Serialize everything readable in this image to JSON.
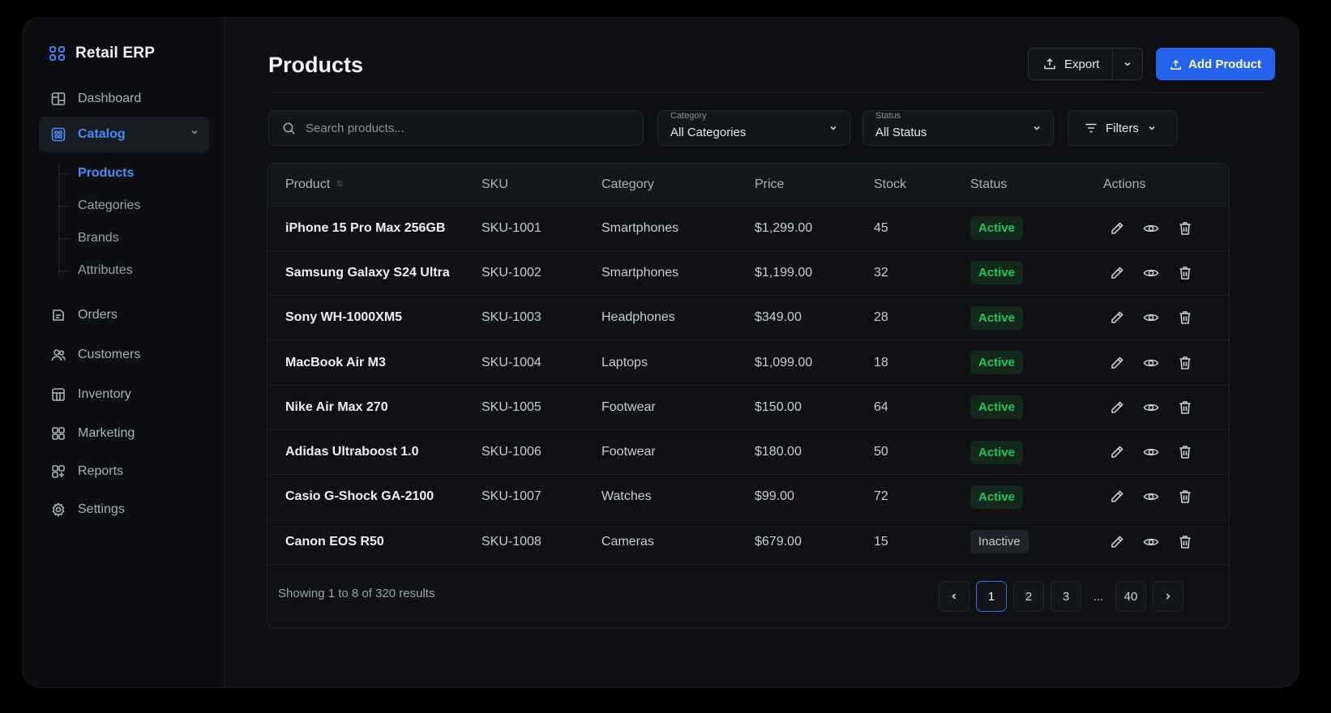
{
  "app": {
    "name": "Retail ERP"
  },
  "sidebar": {
    "items": [
      {
        "label": "Dashboard",
        "icon": "dashboard-icon"
      },
      {
        "label": "Catalog",
        "icon": "catalog-icon",
        "active": true,
        "expanded": true,
        "children": [
          {
            "label": "Products",
            "active": true
          },
          {
            "label": "Categories"
          },
          {
            "label": "Brands"
          },
          {
            "label": "Attributes"
          }
        ]
      },
      {
        "label": "Orders",
        "icon": "orders-icon"
      },
      {
        "label": "Customers",
        "icon": "customers-icon"
      },
      {
        "label": "Inventory",
        "icon": "inventory-icon"
      },
      {
        "label": "Marketing",
        "icon": "marketing-icon"
      },
      {
        "label": "Reports",
        "icon": "reports-icon"
      },
      {
        "label": "Settings",
        "icon": "gear-icon"
      }
    ]
  },
  "header": {
    "title": "Products",
    "export_label": "Export",
    "add_label": "Add Product"
  },
  "filters": {
    "search_placeholder": "Search products...",
    "category_label": "Category",
    "category_value": "All Categories",
    "status_label": "Status",
    "status_value": "All Status",
    "filters_label": "Filters"
  },
  "table": {
    "columns": [
      "Product",
      "SKU",
      "Category",
      "Price",
      "Stock",
      "Status",
      "Actions"
    ],
    "rows": [
      {
        "product": "iPhone 15 Pro Max 256GB",
        "sku": "SKU-1001",
        "category": "Smartphones",
        "price": "$1,299.00",
        "stock": "45",
        "status": "Active"
      },
      {
        "product": "Samsung Galaxy S24 Ultra",
        "sku": "SKU-1002",
        "category": "Smartphones",
        "price": "$1,199.00",
        "stock": "32",
        "status": "Active"
      },
      {
        "product": "Sony WH-1000XM5",
        "sku": "SKU-1003",
        "category": "Headphones",
        "price": "$349.00",
        "stock": "28",
        "status": "Active"
      },
      {
        "product": "MacBook Air M3",
        "sku": "SKU-1004",
        "category": "Laptops",
        "price": "$1,099.00",
        "stock": "18",
        "status": "Active"
      },
      {
        "product": "Nike Air Max 270",
        "sku": "SKU-1005",
        "category": "Footwear",
        "price": "$150.00",
        "stock": "64",
        "status": "Active"
      },
      {
        "product": "Adidas Ultraboost 1.0",
        "sku": "SKU-1006",
        "category": "Footwear",
        "price": "$180.00",
        "stock": "50",
        "status": "Active"
      },
      {
        "product": "Casio G-Shock GA-2100",
        "sku": "SKU-1007",
        "category": "Watches",
        "price": "$99.00",
        "stock": "72",
        "status": "Active"
      },
      {
        "product": "Canon EOS R50",
        "sku": "SKU-1008",
        "category": "Cameras",
        "price": "$679.00",
        "stock": "15",
        "status": "Inactive"
      }
    ]
  },
  "pagination": {
    "summary": "Showing 1 to 8 of 320 results",
    "pages": [
      "1",
      "2",
      "3",
      "...",
      "40"
    ],
    "current": "1"
  },
  "colors": {
    "accent": "#2563eb",
    "active_text": "#4a8cf7",
    "status_active": "#22c55e",
    "background": "#0d0f12"
  }
}
